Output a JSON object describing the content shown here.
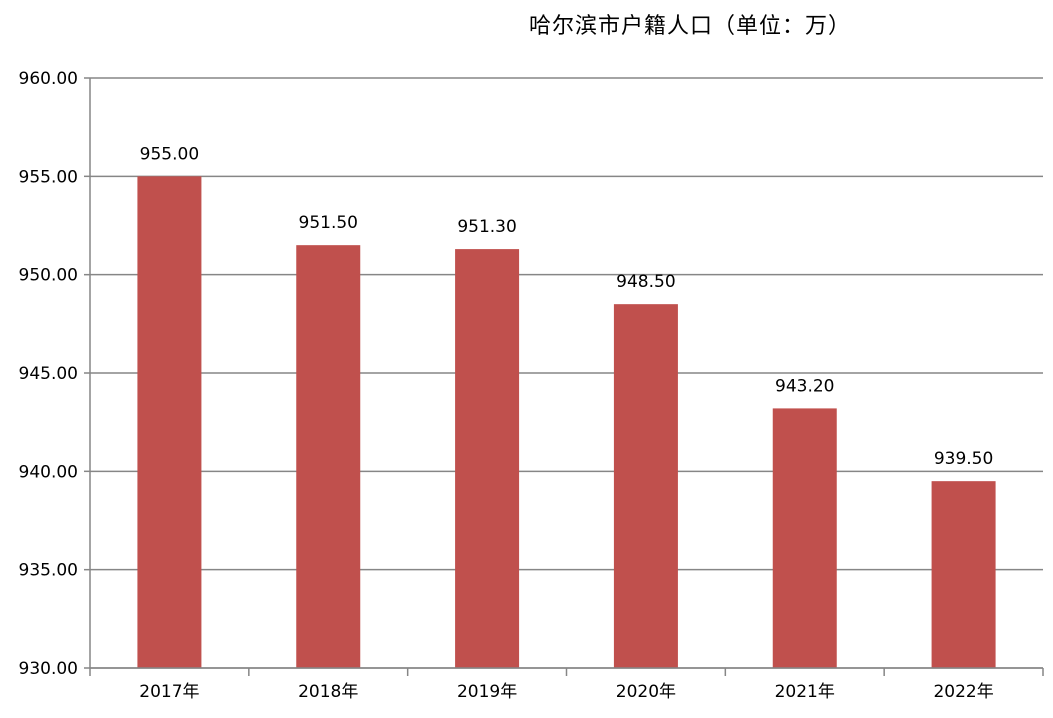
{
  "chart_data": {
    "type": "bar",
    "title": "哈尔滨市户籍人口（单位：万）",
    "xlabel": "",
    "ylabel": "",
    "categories": [
      "2017年",
      "2018年",
      "2019年",
      "2020年",
      "2021年",
      "2022年"
    ],
    "values": [
      955.0,
      951.5,
      951.3,
      948.5,
      943.2,
      939.5
    ],
    "data_labels": [
      "955.00",
      "951.50",
      "951.30",
      "948.50",
      "943.20",
      "939.50"
    ],
    "ylim": [
      930,
      960
    ],
    "y_ticks": [
      930,
      935,
      940,
      945,
      950,
      955,
      960
    ],
    "y_tick_labels": [
      "930.00",
      "935.00",
      "940.00",
      "945.00",
      "950.00",
      "955.00",
      "960.00"
    ],
    "grid": true,
    "legend": "none",
    "bar_color": "#C0504D",
    "grid_color": "#868686",
    "axis_color": "#868686"
  }
}
